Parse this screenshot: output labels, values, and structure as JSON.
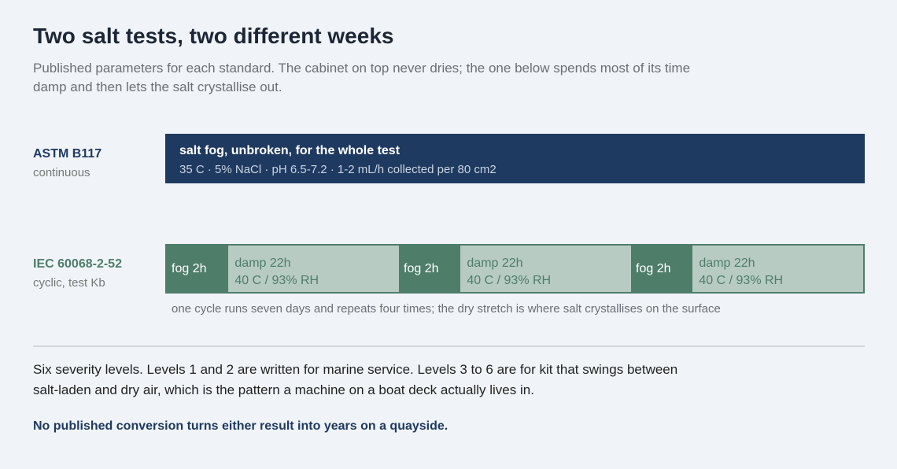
{
  "header": {
    "title": "Two salt tests, two different weeks",
    "subtitle": "Published parameters for each standard. The cabinet on top never dries; the one below spends most of its time damp and then lets the salt crystallise out."
  },
  "tests": [
    {
      "name": "ASTM B117",
      "mode": "continuous",
      "bar_title": "salt fog, unbroken, for the whole test",
      "bar_detail": "35 C  ·  5% NaCl  ·  pH 6.5-7.2  ·  1-2 mL/h collected per 80 cm2"
    },
    {
      "name": "IEC 60068-2-52",
      "mode": "cyclic, test Kb",
      "segments": [
        {
          "label": "fog 2h"
        },
        {
          "label": "damp 22h",
          "detail": "40 C / 93% RH"
        },
        {
          "label": "fog 2h"
        },
        {
          "label": "damp 22h",
          "detail": "40 C / 93% RH"
        },
        {
          "label": "fog 2h"
        },
        {
          "label": "damp 22h",
          "detail": "40 C / 93% RH"
        }
      ],
      "caption": "one cycle runs seven days and repeats four times; the dry stretch is where salt crystallises on the surface"
    }
  ],
  "body": {
    "paragraph": "Six severity levels. Levels 1 and 2 are written for marine service. Levels 3 to 6 are for kit that swings between salt-laden and dry air, which is the pattern a machine on a boat deck actually lives in.",
    "conclusion": "No published conversion turns either result into years on a quayside."
  }
}
